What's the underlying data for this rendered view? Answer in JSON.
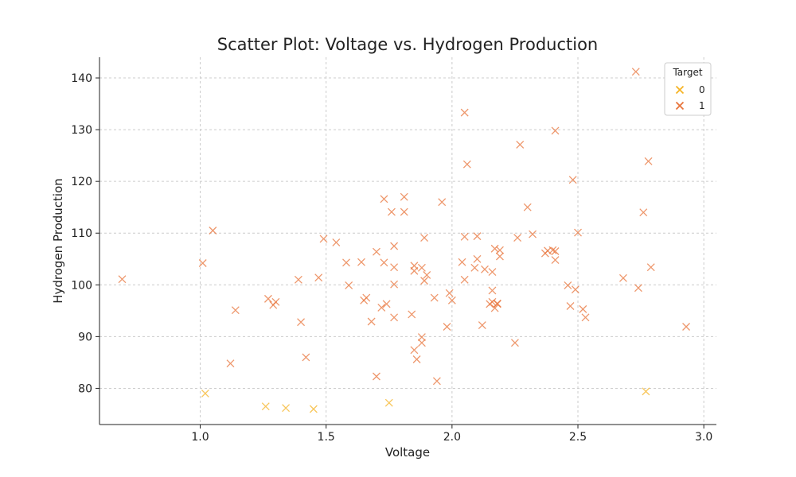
{
  "chart_data": {
    "type": "scatter",
    "title": "Scatter Plot: Voltage vs. Hydrogen Production",
    "xlabel": "Voltage",
    "ylabel": "Hydrogen Production",
    "xlim": [
      0.6,
      3.05
    ],
    "ylim": [
      73,
      144
    ],
    "xticks": [
      1.0,
      1.5,
      2.0,
      2.5,
      3.0
    ],
    "xtick_labels": [
      "1.0",
      "1.5",
      "2.0",
      "2.5",
      "3.0"
    ],
    "yticks": [
      80,
      90,
      100,
      110,
      120,
      130,
      140
    ],
    "ytick_labels": [
      "80",
      "90",
      "100",
      "110",
      "120",
      "130",
      "140"
    ],
    "grid": true,
    "marker": "x",
    "legend": {
      "title": "Target",
      "position": "top-right"
    },
    "series": [
      {
        "name": "0",
        "color": "#f5b324",
        "points": [
          [
            1.02,
            79
          ],
          [
            1.26,
            76.5
          ],
          [
            1.34,
            76.2
          ],
          [
            1.45,
            76
          ],
          [
            1.75,
            77.2
          ],
          [
            2.77,
            79.4
          ]
        ]
      },
      {
        "name": "1",
        "color": "#e8743b",
        "points": [
          [
            0.69,
            101.1
          ],
          [
            1.01,
            104.2
          ],
          [
            1.05,
            110.5
          ],
          [
            1.12,
            84.8
          ],
          [
            1.14,
            95.1
          ],
          [
            1.27,
            97.3
          ],
          [
            1.29,
            96.1
          ],
          [
            1.3,
            96.7
          ],
          [
            1.39,
            101.0
          ],
          [
            1.4,
            92.8
          ],
          [
            1.42,
            86.0
          ],
          [
            1.47,
            101.4
          ],
          [
            1.49,
            108.9
          ],
          [
            1.54,
            108.2
          ],
          [
            1.58,
            104.3
          ],
          [
            1.59,
            99.9
          ],
          [
            1.64,
            104.4
          ],
          [
            1.65,
            97.0
          ],
          [
            1.66,
            97.5
          ],
          [
            1.68,
            92.9
          ],
          [
            1.7,
            106.4
          ],
          [
            1.7,
            82.3
          ],
          [
            1.72,
            95.6
          ],
          [
            1.73,
            104.3
          ],
          [
            1.73,
            116.6
          ],
          [
            1.74,
            96.3
          ],
          [
            1.76,
            114.1
          ],
          [
            1.77,
            103.4
          ],
          [
            1.77,
            100.1
          ],
          [
            1.77,
            93.7
          ],
          [
            1.77,
            107.5
          ],
          [
            1.81,
            117.0
          ],
          [
            1.81,
            114.1
          ],
          [
            1.84,
            94.3
          ],
          [
            1.85,
            87.4
          ],
          [
            1.85,
            102.7
          ],
          [
            1.85,
            103.7
          ],
          [
            1.86,
            85.6
          ],
          [
            1.88,
            103.3
          ],
          [
            1.88,
            89.9
          ],
          [
            1.88,
            88.8
          ],
          [
            1.89,
            109.1
          ],
          [
            1.89,
            100.8
          ],
          [
            1.9,
            101.9
          ],
          [
            1.93,
            97.5
          ],
          [
            1.94,
            81.4
          ],
          [
            1.96,
            116.0
          ],
          [
            1.98,
            91.9
          ],
          [
            1.99,
            98.4
          ],
          [
            2.0,
            97.0
          ],
          [
            2.04,
            104.4
          ],
          [
            2.05,
            109.3
          ],
          [
            2.05,
            133.3
          ],
          [
            2.06,
            123.3
          ],
          [
            2.05,
            101.0
          ],
          [
            2.09,
            103.3
          ],
          [
            2.1,
            105.0
          ],
          [
            2.1,
            109.4
          ],
          [
            2.12,
            92.2
          ],
          [
            2.13,
            103.0
          ],
          [
            2.15,
            96.3
          ],
          [
            2.16,
            96.7
          ],
          [
            2.16,
            98.9
          ],
          [
            2.16,
            102.5
          ],
          [
            2.17,
            95.5
          ],
          [
            2.17,
            107.0
          ],
          [
            2.18,
            96.4
          ],
          [
            2.18,
            96.3
          ],
          [
            2.19,
            105.5
          ],
          [
            2.19,
            106.7
          ],
          [
            2.25,
            88.8
          ],
          [
            2.26,
            109.1
          ],
          [
            2.27,
            127.1
          ],
          [
            2.3,
            115.0
          ],
          [
            2.32,
            109.8
          ],
          [
            2.37,
            106.1
          ],
          [
            2.38,
            106.6
          ],
          [
            2.4,
            106.7
          ],
          [
            2.41,
            104.8
          ],
          [
            2.41,
            106.5
          ],
          [
            2.41,
            129.8
          ],
          [
            2.46,
            99.9
          ],
          [
            2.47,
            95.9
          ],
          [
            2.48,
            120.3
          ],
          [
            2.49,
            99.1
          ],
          [
            2.5,
            110.1
          ],
          [
            2.52,
            95.3
          ],
          [
            2.53,
            93.7
          ],
          [
            2.68,
            101.3
          ],
          [
            2.73,
            141.2
          ],
          [
            2.74,
            99.4
          ],
          [
            2.76,
            114.0
          ],
          [
            2.78,
            123.9
          ],
          [
            2.79,
            103.4
          ],
          [
            2.93,
            91.9
          ]
        ]
      }
    ]
  }
}
